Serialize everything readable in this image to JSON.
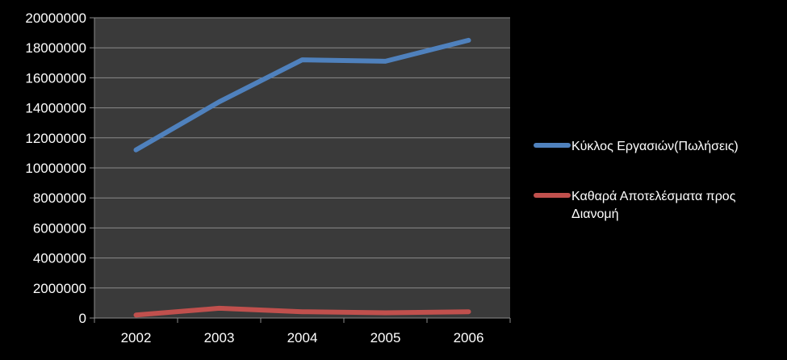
{
  "chart_data": {
    "type": "line",
    "categories": [
      "2002",
      "2003",
      "2004",
      "2005",
      "2006"
    ],
    "series": [
      {
        "name": "Κύκλος Εργασιών(Πωλήσεις)",
        "values": [
          11200000,
          14400000,
          17200000,
          17100000,
          18500000
        ],
        "color": "#4f81bd"
      },
      {
        "name": "Καθαρά Αποτελέσματα προς Διανομή",
        "name_lines": [
          "Καθαρά Αποτελέσματα προς",
          "Διανομή"
        ],
        "values": [
          200000,
          650000,
          420000,
          350000,
          420000
        ],
        "color": "#c0504d"
      }
    ],
    "ylim": [
      0,
      20000000
    ],
    "yticks": [
      "0",
      "2000000",
      "4000000",
      "6000000",
      "8000000",
      "10000000",
      "12000000",
      "14000000",
      "16000000",
      "18000000",
      "20000000"
    ],
    "grid": true,
    "plot_background": "#3a3a3a",
    "page_background": "#000000",
    "legend": "right",
    "title": "",
    "xlabel": "",
    "ylabel": ""
  }
}
